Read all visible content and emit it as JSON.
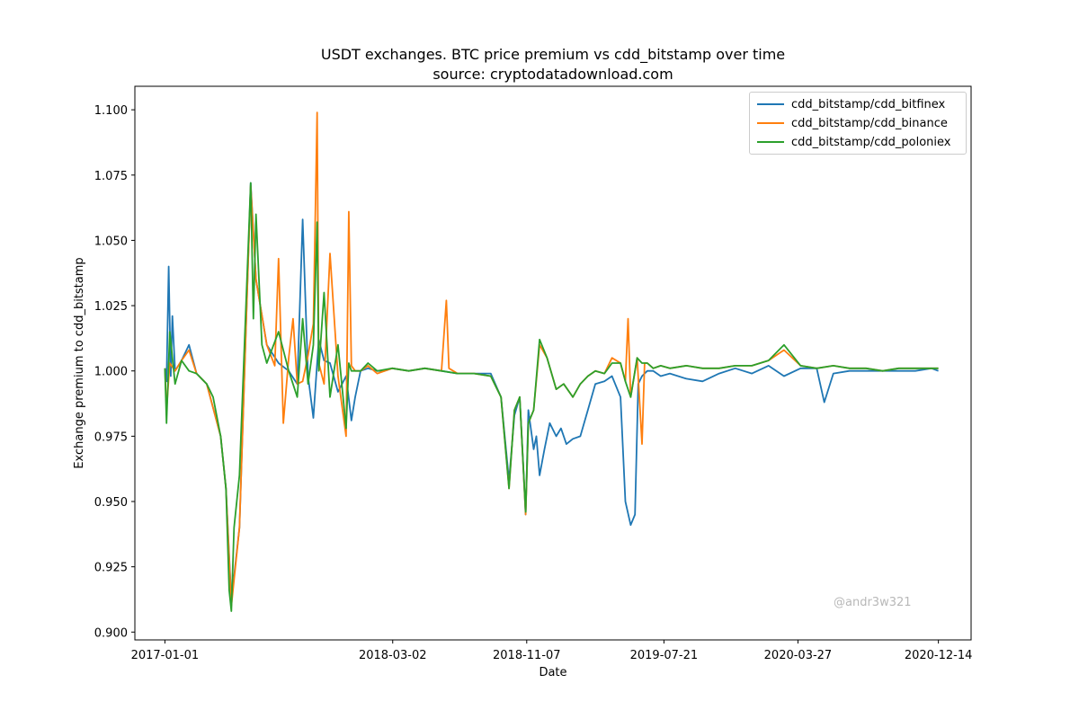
{
  "chart_data": {
    "type": "line",
    "title": "USDT exchanges. BTC price premium vs cdd_bitstamp over time",
    "subtitle": "source: cryptodatadownload.com",
    "xlabel": "Date",
    "ylabel": "Exchange premium to cdd_bitstamp",
    "x_ticks": [
      "2017-01-01",
      "2018-03-02",
      "2018-11-07",
      "2019-07-21",
      "2020-03-27",
      "2020-12-14"
    ],
    "y_ticks": [
      "0.900",
      "0.925",
      "0.950",
      "0.975",
      "1.000",
      "1.025",
      "1.050",
      "1.075",
      "1.100"
    ],
    "xlim": [
      "2016-11-06",
      "2021-02-13"
    ],
    "ylim": [
      0.897,
      1.109
    ],
    "grid": false,
    "legend_position": "top-right",
    "watermark": "@andr3w321",
    "series": [
      {
        "name": "cdd_bitstamp/cdd_bitfinex",
        "color": "#1f77b4",
        "x": [
          "2017-01-01",
          "2017-01-04",
          "2017-01-08",
          "2017-01-12",
          "2017-01-15",
          "2017-01-20",
          "2017-02-01",
          "2017-02-15",
          "2017-03-01",
          "2017-03-20",
          "2017-04-15",
          "2017-04-25",
          "2017-05-05",
          "2017-05-20",
          "2017-06-10",
          "2017-06-20",
          "2017-07-10",
          "2017-08-01",
          "2017-08-20",
          "2017-09-05",
          "2017-09-15",
          "2017-09-25",
          "2017-10-05",
          "2017-10-15",
          "2017-10-25",
          "2017-11-05",
          "2017-11-20",
          "2017-12-05",
          "2017-12-15",
          "2017-12-22",
          "2018-01-01",
          "2018-01-15",
          "2018-02-01",
          "2018-02-15",
          "2018-03-01",
          "2018-04-01",
          "2018-05-01",
          "2018-06-01",
          "2018-07-01",
          "2018-08-01",
          "2018-09-01",
          "2018-09-20",
          "2018-10-05",
          "2018-10-15",
          "2018-10-25",
          "2018-11-05",
          "2018-11-10",
          "2018-11-20",
          "2018-11-25",
          "2018-12-01",
          "2018-12-10",
          "2018-12-20",
          "2019-01-01",
          "2019-01-10",
          "2019-01-20",
          "2019-02-01",
          "2019-02-15",
          "2019-03-01",
          "2019-03-15",
          "2019-04-01",
          "2019-04-15",
          "2019-05-01",
          "2019-05-10",
          "2019-05-20",
          "2019-05-28",
          "2019-06-03",
          "2019-06-10",
          "2019-06-20",
          "2019-07-01",
          "2019-07-15",
          "2019-08-01",
          "2019-09-01",
          "2019-10-01",
          "2019-11-01",
          "2019-12-01",
          "2020-01-01",
          "2020-02-01",
          "2020-03-01",
          "2020-04-01",
          "2020-05-01",
          "2020-05-15",
          "2020-06-01",
          "2020-07-01",
          "2020-08-01",
          "2020-09-01",
          "2020-10-01",
          "2020-11-01",
          "2020-12-01",
          "2020-12-14"
        ],
        "y": [
          1.001,
          0.996,
          1.04,
          0.998,
          1.021,
          1.0,
          1.004,
          1.01,
          0.999,
          0.995,
          0.975,
          0.955,
          0.912,
          0.94,
          1.072,
          1.035,
          1.01,
          1.003,
          1.0,
          0.995,
          1.058,
          0.998,
          0.982,
          1.012,
          1.004,
          1.003,
          0.992,
          0.998,
          0.981,
          0.99,
          1.0,
          1.001,
          1.0,
          1.0,
          1.001,
          1.0,
          1.001,
          1.0,
          0.999,
          0.999,
          0.999,
          0.99,
          0.958,
          0.983,
          0.99,
          0.945,
          0.985,
          0.97,
          0.975,
          0.96,
          0.97,
          0.98,
          0.975,
          0.978,
          0.972,
          0.974,
          0.975,
          0.985,
          0.995,
          0.996,
          0.998,
          0.99,
          0.95,
          0.941,
          0.945,
          0.995,
          0.998,
          1.0,
          1.0,
          0.998,
          0.999,
          0.997,
          0.996,
          0.999,
          1.001,
          0.999,
          1.002,
          0.998,
          1.001,
          1.001,
          0.988,
          0.999,
          1.0,
          1.0,
          1.0,
          1.0,
          1.0,
          1.001,
          1.0
        ]
      },
      {
        "name": "cdd_bitstamp/cdd_binance",
        "color": "#ff7f0e",
        "x": [
          "2017-01-01",
          "2017-01-04",
          "2017-01-10",
          "2017-01-20",
          "2017-02-01",
          "2017-02-15",
          "2017-03-01",
          "2017-03-20",
          "2017-04-15",
          "2017-04-25",
          "2017-05-05",
          "2017-05-20",
          "2017-06-10",
          "2017-06-20",
          "2017-07-10",
          "2017-07-25",
          "2017-08-01",
          "2017-08-10",
          "2017-08-20",
          "2017-08-28",
          "2017-09-05",
          "2017-09-15",
          "2017-09-25",
          "2017-10-05",
          "2017-10-12",
          "2017-10-15",
          "2017-10-25",
          "2017-11-05",
          "2017-11-20",
          "2017-12-05",
          "2017-12-10",
          "2017-12-15",
          "2017-12-22",
          "2018-01-01",
          "2018-01-15",
          "2018-02-01",
          "2018-03-01",
          "2018-04-01",
          "2018-05-01",
          "2018-06-01",
          "2018-06-10",
          "2018-06-15",
          "2018-07-01",
          "2018-08-01",
          "2018-09-01",
          "2018-09-20",
          "2018-10-05",
          "2018-10-15",
          "2018-10-25",
          "2018-11-05",
          "2018-11-10",
          "2018-11-20",
          "2018-12-01",
          "2018-12-15",
          "2019-01-01",
          "2019-01-15",
          "2019-02-01",
          "2019-02-15",
          "2019-03-01",
          "2019-03-15",
          "2019-04-01",
          "2019-04-15",
          "2019-05-01",
          "2019-05-10",
          "2019-05-15",
          "2019-05-20",
          "2019-06-01",
          "2019-06-10",
          "2019-06-15",
          "2019-06-20",
          "2019-07-01",
          "2019-07-15",
          "2019-08-01",
          "2019-09-01",
          "2019-10-01",
          "2019-11-01",
          "2019-12-01",
          "2020-01-01",
          "2020-02-01",
          "2020-03-01",
          "2020-04-01",
          "2020-05-01",
          "2020-06-01",
          "2020-07-01",
          "2020-08-01",
          "2020-09-01",
          "2020-10-01",
          "2020-11-01",
          "2020-12-01",
          "2020-12-14"
        ],
        "y": [
          1.001,
          0.985,
          1.003,
          1.0,
          1.004,
          1.008,
          0.999,
          0.995,
          0.975,
          0.955,
          0.91,
          0.94,
          1.071,
          1.035,
          1.01,
          1.002,
          1.043,
          0.98,
          1.005,
          1.02,
          0.995,
          0.996,
          1.006,
          1.018,
          1.099,
          1.003,
          0.995,
          1.045,
          0.998,
          0.975,
          1.061,
          1.002,
          1.0,
          1.0,
          1.002,
          0.999,
          1.001,
          1.0,
          1.001,
          1.0,
          1.027,
          1.001,
          0.999,
          0.999,
          0.998,
          0.99,
          0.955,
          0.985,
          0.99,
          0.945,
          0.98,
          0.985,
          1.01,
          1.005,
          0.993,
          0.995,
          0.99,
          0.995,
          0.998,
          1.0,
          0.999,
          1.005,
          1.003,
          0.996,
          1.02,
          0.99,
          1.005,
          0.972,
          1.003,
          1.003,
          1.001,
          1.002,
          1.001,
          1.002,
          1.001,
          1.001,
          1.002,
          1.002,
          1.004,
          1.008,
          1.002,
          1.001,
          1.002,
          1.001,
          1.001,
          1.0,
          1.001,
          1.001,
          1.001,
          1.001
        ]
      },
      {
        "name": "cdd_bitstamp/cdd_poloniex",
        "color": "#2ca02c",
        "x": [
          "2017-01-01",
          "2017-01-04",
          "2017-01-10",
          "2017-01-20",
          "2017-02-01",
          "2017-02-15",
          "2017-03-01",
          "2017-03-20",
          "2017-04-01",
          "2017-04-15",
          "2017-04-25",
          "2017-05-01",
          "2017-05-05",
          "2017-05-10",
          "2017-05-20",
          "2017-06-10",
          "2017-06-15",
          "2017-06-20",
          "2017-07-01",
          "2017-07-10",
          "2017-08-01",
          "2017-08-20",
          "2017-09-05",
          "2017-09-15",
          "2017-09-25",
          "2017-10-05",
          "2017-10-12",
          "2017-10-15",
          "2017-10-25",
          "2017-11-05",
          "2017-11-20",
          "2017-12-05",
          "2017-12-10",
          "2017-12-15",
          "2017-12-22",
          "2018-01-01",
          "2018-01-15",
          "2018-02-01",
          "2018-03-01",
          "2018-04-01",
          "2018-05-01",
          "2018-06-01",
          "2018-07-01",
          "2018-08-01",
          "2018-09-01",
          "2018-09-20",
          "2018-10-05",
          "2018-10-15",
          "2018-10-25",
          "2018-11-05",
          "2018-11-10",
          "2018-11-20",
          "2018-12-01",
          "2018-12-15",
          "2019-01-01",
          "2019-01-15",
          "2019-02-01",
          "2019-02-15",
          "2019-03-01",
          "2019-03-15",
          "2019-04-01",
          "2019-04-15",
          "2019-05-01",
          "2019-05-10",
          "2019-05-20",
          "2019-06-01",
          "2019-06-10",
          "2019-06-20",
          "2019-07-01",
          "2019-07-15",
          "2019-08-01",
          "2019-09-01",
          "2019-10-01",
          "2019-11-01",
          "2019-12-01",
          "2020-01-01",
          "2020-02-01",
          "2020-03-01",
          "2020-04-01",
          "2020-05-01",
          "2020-06-01",
          "2020-07-01",
          "2020-08-01",
          "2020-09-01",
          "2020-10-01",
          "2020-11-01",
          "2020-12-01",
          "2020-12-14"
        ],
        "y": [
          1.001,
          0.98,
          1.015,
          0.995,
          1.004,
          1.0,
          0.999,
          0.995,
          0.99,
          0.975,
          0.955,
          0.916,
          0.908,
          0.94,
          0.96,
          1.072,
          1.02,
          1.06,
          1.01,
          1.003,
          1.015,
          1.0,
          0.99,
          1.02,
          0.995,
          1.01,
          1.057,
          1.0,
          1.03,
          0.99,
          1.01,
          0.978,
          1.003,
          1.0,
          1.0,
          1.0,
          1.003,
          1.0,
          1.001,
          1.0,
          1.001,
          1.0,
          0.999,
          0.999,
          0.998,
          0.99,
          0.955,
          0.985,
          0.99,
          0.946,
          0.98,
          0.985,
          1.012,
          1.005,
          0.993,
          0.995,
          0.99,
          0.995,
          0.998,
          1.0,
          0.999,
          1.003,
          1.003,
          0.996,
          0.99,
          1.005,
          1.003,
          1.003,
          1.001,
          1.002,
          1.001,
          1.002,
          1.001,
          1.001,
          1.002,
          1.002,
          1.004,
          1.01,
          1.002,
          1.001,
          1.002,
          1.001,
          1.001,
          1.0,
          1.001,
          1.001,
          1.001,
          1.001
        ]
      }
    ]
  }
}
